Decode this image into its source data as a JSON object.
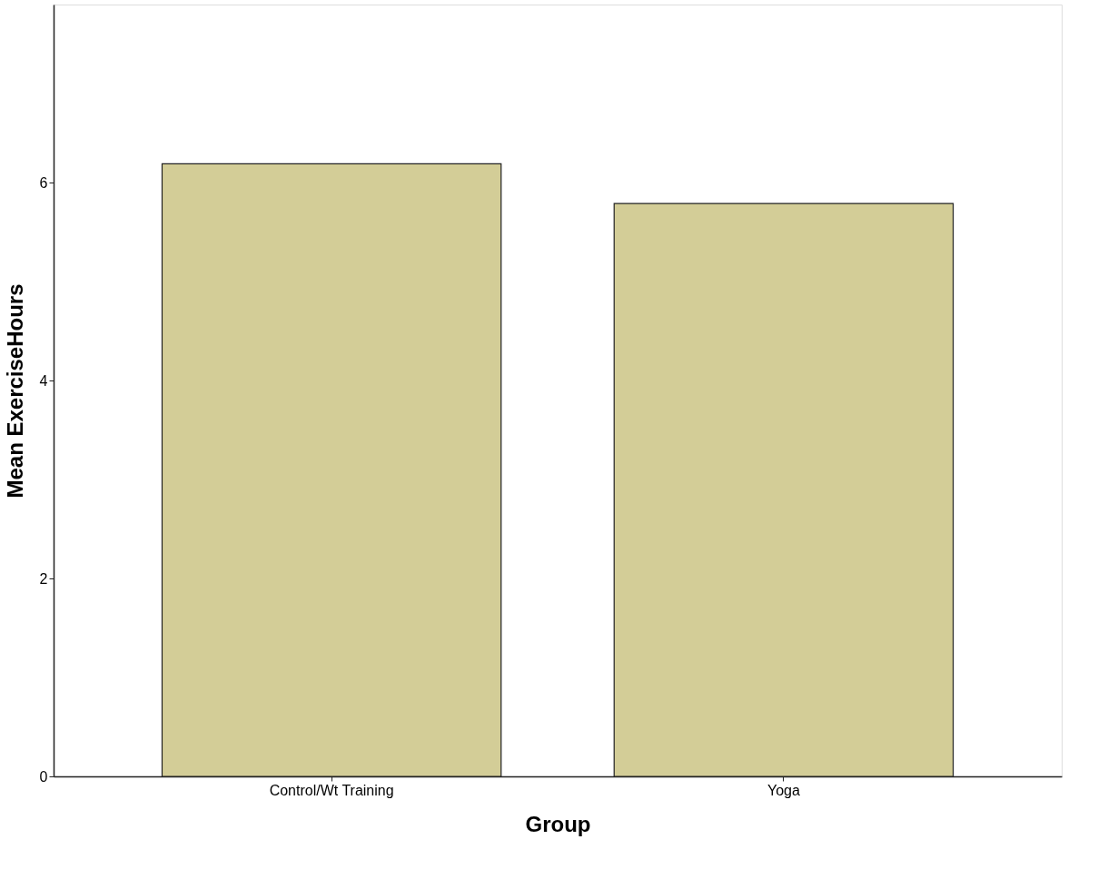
{
  "chart_data": {
    "type": "bar",
    "xlabel": "Group",
    "ylabel": "Mean ExerciseHours",
    "categories": [
      "Control/Wt Training",
      "Yoga"
    ],
    "values": [
      6.19,
      5.79
    ],
    "color": "#d3cd97",
    "ylim": [
      0,
      7.8
    ],
    "yticks": [
      0,
      2,
      4,
      6
    ],
    "grid": false
  }
}
